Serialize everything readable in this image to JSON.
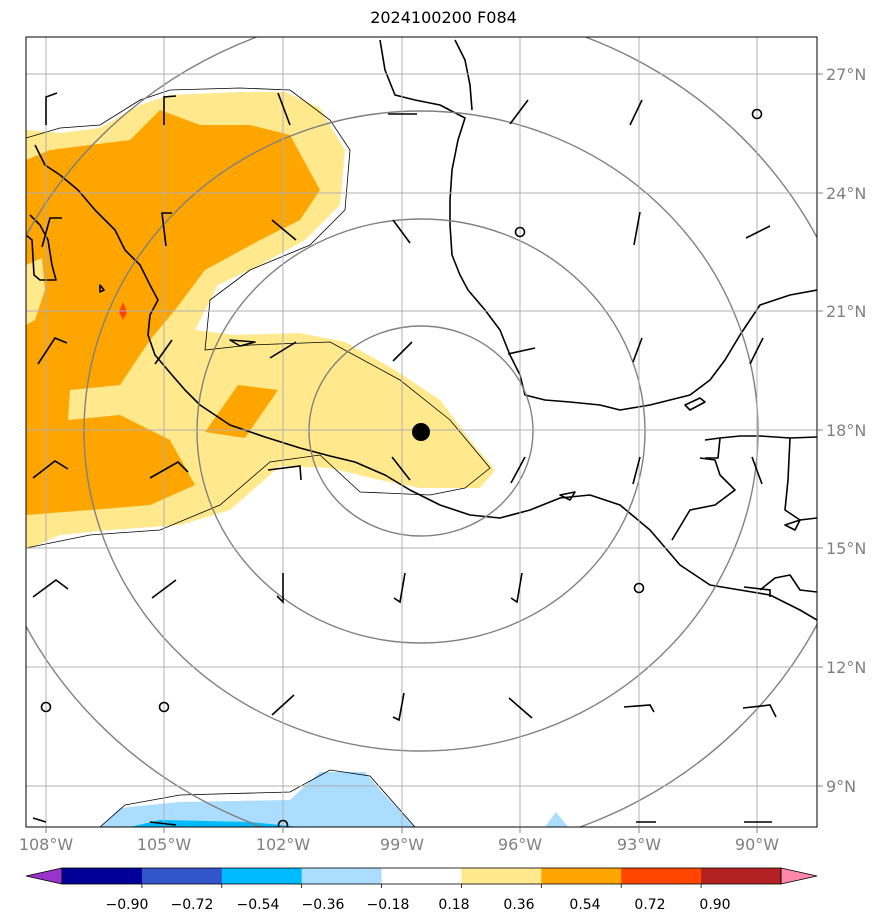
{
  "title": "2024100200 F084",
  "map": {
    "lon_range": [
      -108.5,
      -88.5
    ],
    "lat_range": [
      8,
      28
    ],
    "grid": true,
    "lon_ticks": [
      "108°W",
      "105°W",
      "102°W",
      "99°W",
      "96°W",
      "93°W",
      "90°W"
    ],
    "lat_ticks": [
      "27°N",
      "24°N",
      "21°N",
      "18°N",
      "15°N",
      "12°N",
      "9°N"
    ],
    "center_marker": {
      "lon": -98.5,
      "lat": 18
    }
  },
  "colorbar": {
    "labels": [
      "−0.90",
      "−0.72",
      "−0.54",
      "−0.36",
      "−0.18",
      "0.18",
      "0.36",
      "0.54",
      "0.72",
      "0.90"
    ],
    "colors": [
      "#9933cc",
      "#000099",
      "#3355cc",
      "#00bbff",
      "#aaddff",
      "#ffffff",
      "#ffe98c",
      "#ffa500",
      "#ff4500",
      "#b22222",
      "#ff88aa"
    ],
    "extend": "both"
  },
  "colors": {
    "axis_gray": "#808080",
    "range_ring": "#808080",
    "coast": "#000000",
    "fill_light_yellow": "#ffe98c",
    "fill_orange": "#ffa500",
    "fill_light_blue": "#aaddff",
    "fill_cyan": "#00bbff"
  }
}
